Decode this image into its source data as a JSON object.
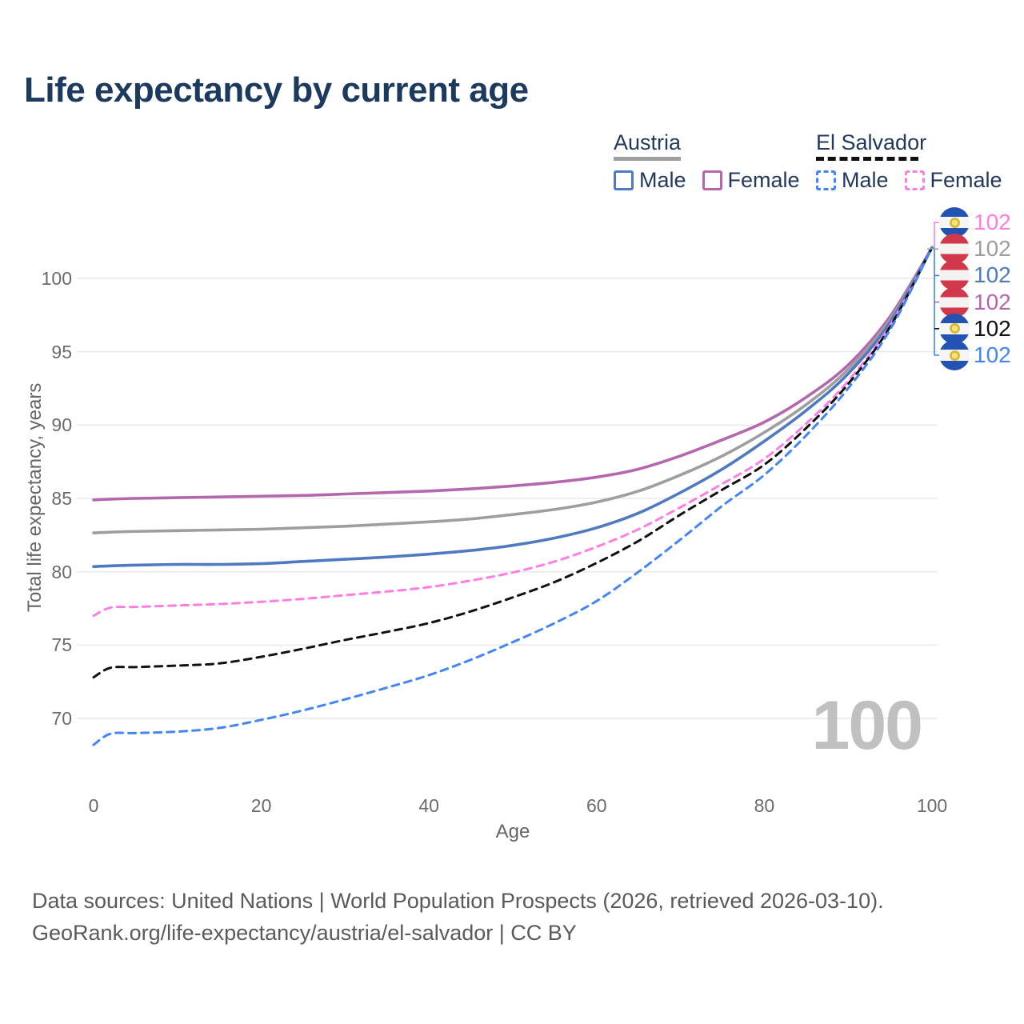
{
  "title": "Life expectancy by current age",
  "legend": {
    "groups": [
      {
        "country": "Austria",
        "line_style": "solid",
        "items": [
          {
            "label": "Male",
            "color": "#4f79c0",
            "dashed": false
          },
          {
            "label": "Female",
            "color": "#b467ad",
            "dashed": false
          }
        ]
      },
      {
        "country": "El Salvador",
        "line_style": "dashed",
        "items": [
          {
            "label": "Male",
            "color": "#4285f4",
            "dashed": true
          },
          {
            "label": "Female",
            "color": "#ff7ee1",
            "dashed": true
          }
        ]
      }
    ]
  },
  "watermark": "100",
  "footer": {
    "line1": "Data sources: United Nations | World Population Prospects (2026, retrieved 2026-03-10).",
    "line2": "GeoRank.org/life-expectancy/austria/el-salvador | CC BY"
  },
  "chart_data": {
    "type": "line",
    "title": "Life expectancy by current age",
    "xlabel": "Age",
    "ylabel": "Total life expectancy, years",
    "xlim": [
      0,
      100
    ],
    "ylim": [
      66.5,
      103
    ],
    "xticks": [
      0,
      20,
      40,
      60,
      80,
      100
    ],
    "yticks": [
      70,
      75,
      80,
      85,
      90,
      95,
      100
    ],
    "grid": "horizontal",
    "legend_position": "top-right",
    "x": [
      0,
      2,
      5,
      10,
      15,
      20,
      25,
      30,
      35,
      40,
      45,
      50,
      55,
      60,
      65,
      70,
      75,
      80,
      85,
      90,
      95,
      100
    ],
    "series": [
      {
        "id": "austria-female",
        "name": "Austria Female",
        "color": "#b467ad",
        "dashed": false,
        "values": [
          84.9,
          84.95,
          85.0,
          85.05,
          85.1,
          85.15,
          85.2,
          85.3,
          85.4,
          85.5,
          85.65,
          85.85,
          86.1,
          86.45,
          87.0,
          87.9,
          89.0,
          90.2,
          91.9,
          94.1,
          97.4,
          102.1
        ]
      },
      {
        "id": "austria-both",
        "name": "Austria Both sexes",
        "color": "#9e9e9e",
        "dashed": false,
        "values": [
          82.65,
          82.7,
          82.75,
          82.8,
          82.85,
          82.9,
          83.0,
          83.1,
          83.25,
          83.4,
          83.6,
          83.9,
          84.25,
          84.75,
          85.5,
          86.6,
          87.9,
          89.5,
          91.4,
          93.8,
          97.2,
          102.1
        ]
      },
      {
        "id": "austria-male",
        "name": "Austria Male",
        "color": "#4f79c0",
        "dashed": false,
        "values": [
          80.35,
          80.4,
          80.45,
          80.5,
          80.5,
          80.55,
          80.7,
          80.85,
          81.0,
          81.2,
          81.45,
          81.8,
          82.3,
          83.0,
          84.0,
          85.4,
          87.0,
          88.9,
          91.0,
          93.5,
          97.0,
          102.1
        ]
      },
      {
        "id": "elsalvador-female",
        "name": "El Salvador Female",
        "color": "#ff7ee1",
        "dashed": true,
        "values": [
          77.0,
          77.55,
          77.6,
          77.7,
          77.8,
          77.95,
          78.15,
          78.4,
          78.65,
          78.95,
          79.4,
          79.95,
          80.7,
          81.7,
          82.9,
          84.4,
          86.0,
          87.7,
          90.1,
          93.0,
          96.8,
          102.1
        ]
      },
      {
        "id": "elsalvador-both",
        "name": "El Salvador Both sexes",
        "color": "#111111",
        "dashed": true,
        "values": [
          72.8,
          73.45,
          73.5,
          73.6,
          73.75,
          74.2,
          74.75,
          75.35,
          75.9,
          76.5,
          77.3,
          78.25,
          79.3,
          80.6,
          82.1,
          83.9,
          85.6,
          87.3,
          89.8,
          92.8,
          96.7,
          102.1
        ]
      },
      {
        "id": "elsalvador-male",
        "name": "El Salvador Male",
        "color": "#4285f4",
        "dashed": true,
        "values": [
          68.2,
          68.95,
          69.0,
          69.1,
          69.35,
          69.9,
          70.55,
          71.3,
          72.1,
          72.95,
          74.0,
          75.2,
          76.5,
          78.0,
          80.0,
          82.2,
          84.5,
          86.6,
          89.3,
          92.5,
          96.5,
          102.1
        ]
      }
    ],
    "end_annotations": [
      {
        "flag": "El Salvador",
        "label": "102",
        "color": "#ff7ee1"
      },
      {
        "flag": "Austria",
        "label": "102",
        "color": "#9e9e9e"
      },
      {
        "flag": "Austria",
        "label": "102",
        "color": "#4f79c0"
      },
      {
        "flag": "Austria",
        "label": "102",
        "color": "#b467ad"
      },
      {
        "flag": "El Salvador",
        "label": "102",
        "color": "#111111"
      },
      {
        "flag": "El Salvador",
        "label": "102",
        "color": "#4285f4"
      }
    ]
  }
}
